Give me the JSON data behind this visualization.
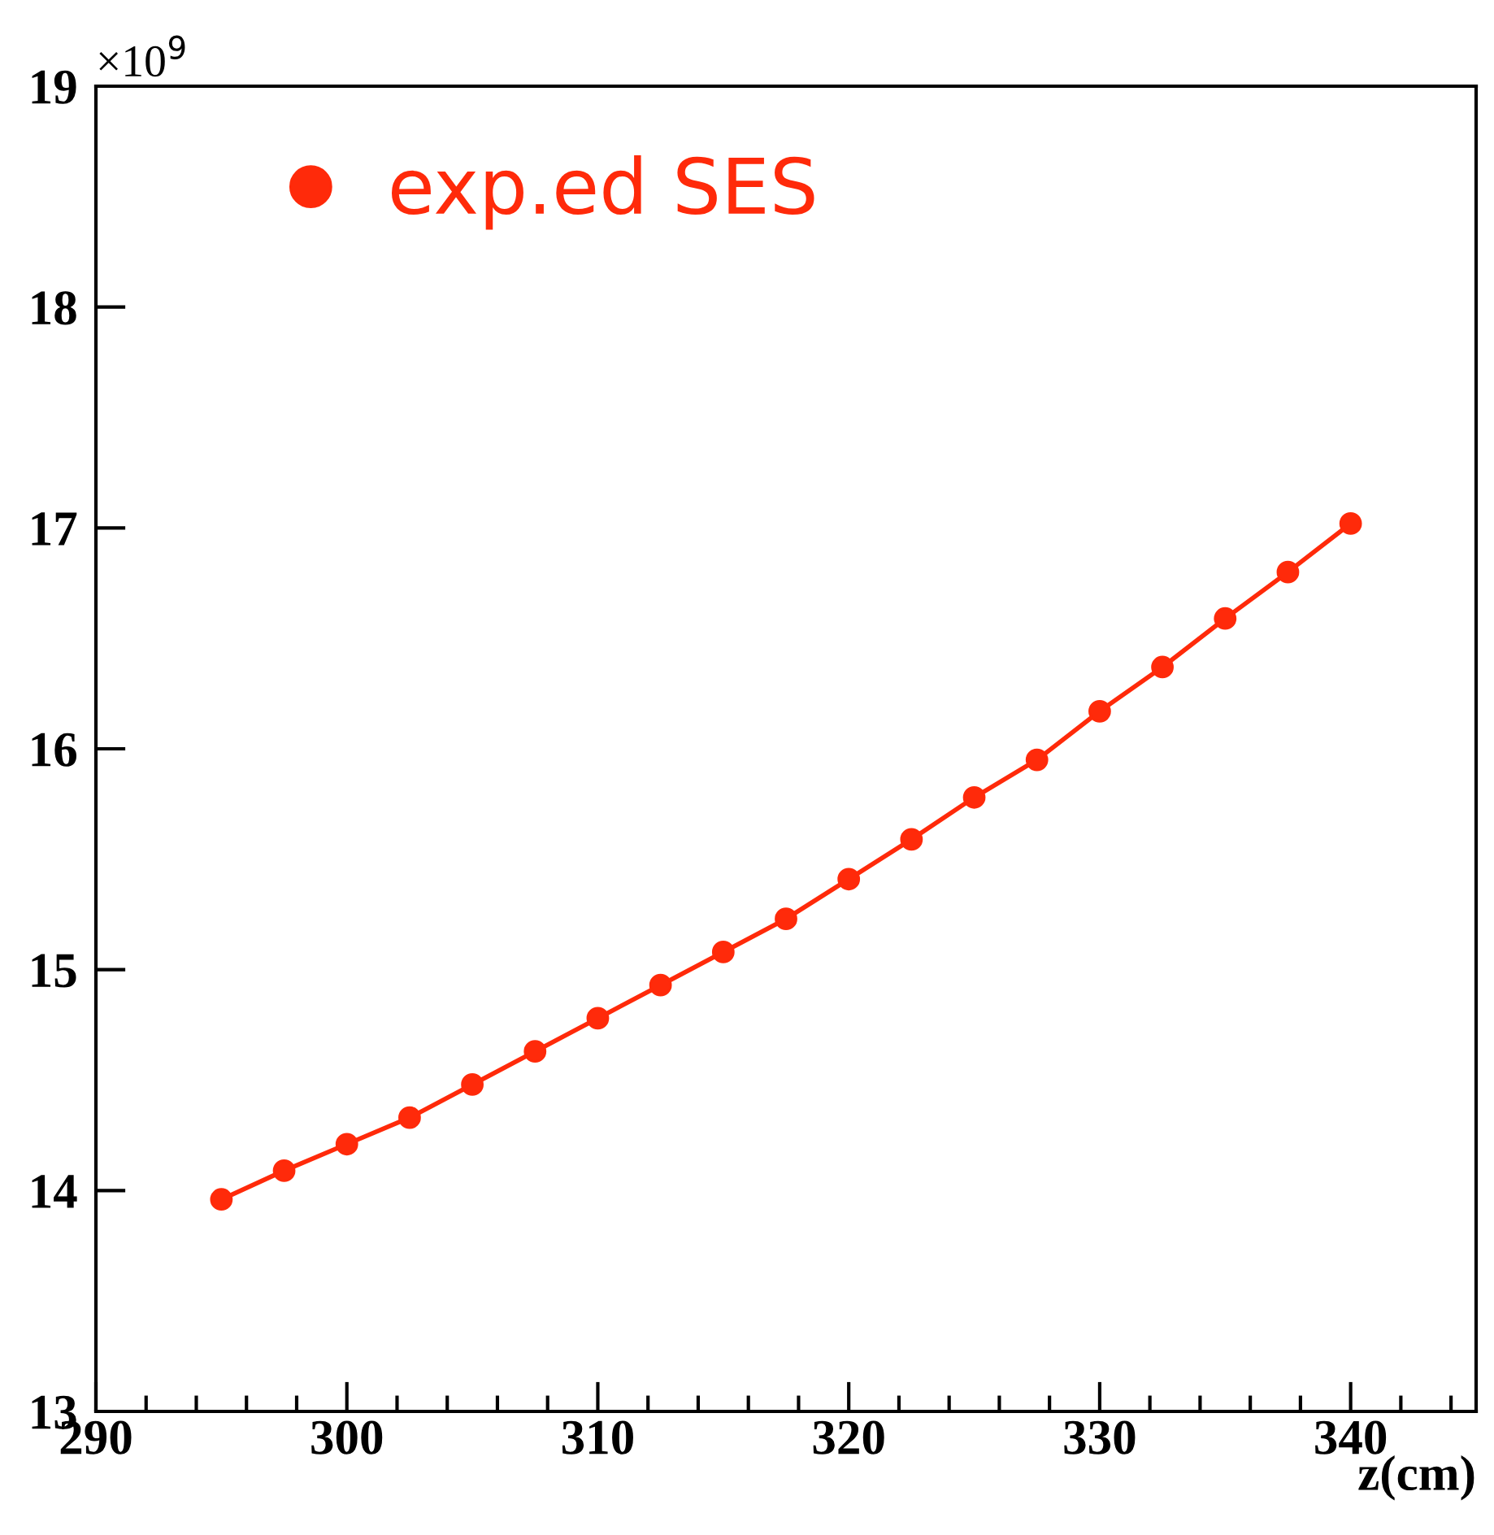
{
  "chart_data": {
    "type": "line",
    "xlabel": "z(cm)",
    "annotations": [
      "×10$^{9}$"
    ],
    "x": [
      295,
      297.5,
      300,
      302.5,
      305,
      307.5,
      310,
      312.5,
      315,
      317.5,
      320,
      322.5,
      325,
      327.5,
      330,
      332.5,
      335,
      337.5,
      340
    ],
    "series": [
      {
        "name": "exp.ed SES",
        "color": "#ff2a0a",
        "values": [
          13.96,
          14.09,
          14.21,
          14.33,
          14.48,
          14.63,
          14.78,
          14.93,
          15.08,
          15.23,
          15.41,
          15.59,
          15.78,
          15.95,
          16.17,
          16.37,
          16.59,
          16.8,
          17.02
        ]
      }
    ],
    "xlim": [
      290,
      345
    ],
    "xticks": [
      290,
      300,
      310,
      320,
      330,
      340
    ],
    "ylim": [
      13,
      19
    ],
    "yticks": [
      13,
      14,
      15,
      16,
      17,
      18,
      19
    ],
    "marker": "circle",
    "line_style": "solid",
    "legend": "top left",
    "grid": false
  }
}
